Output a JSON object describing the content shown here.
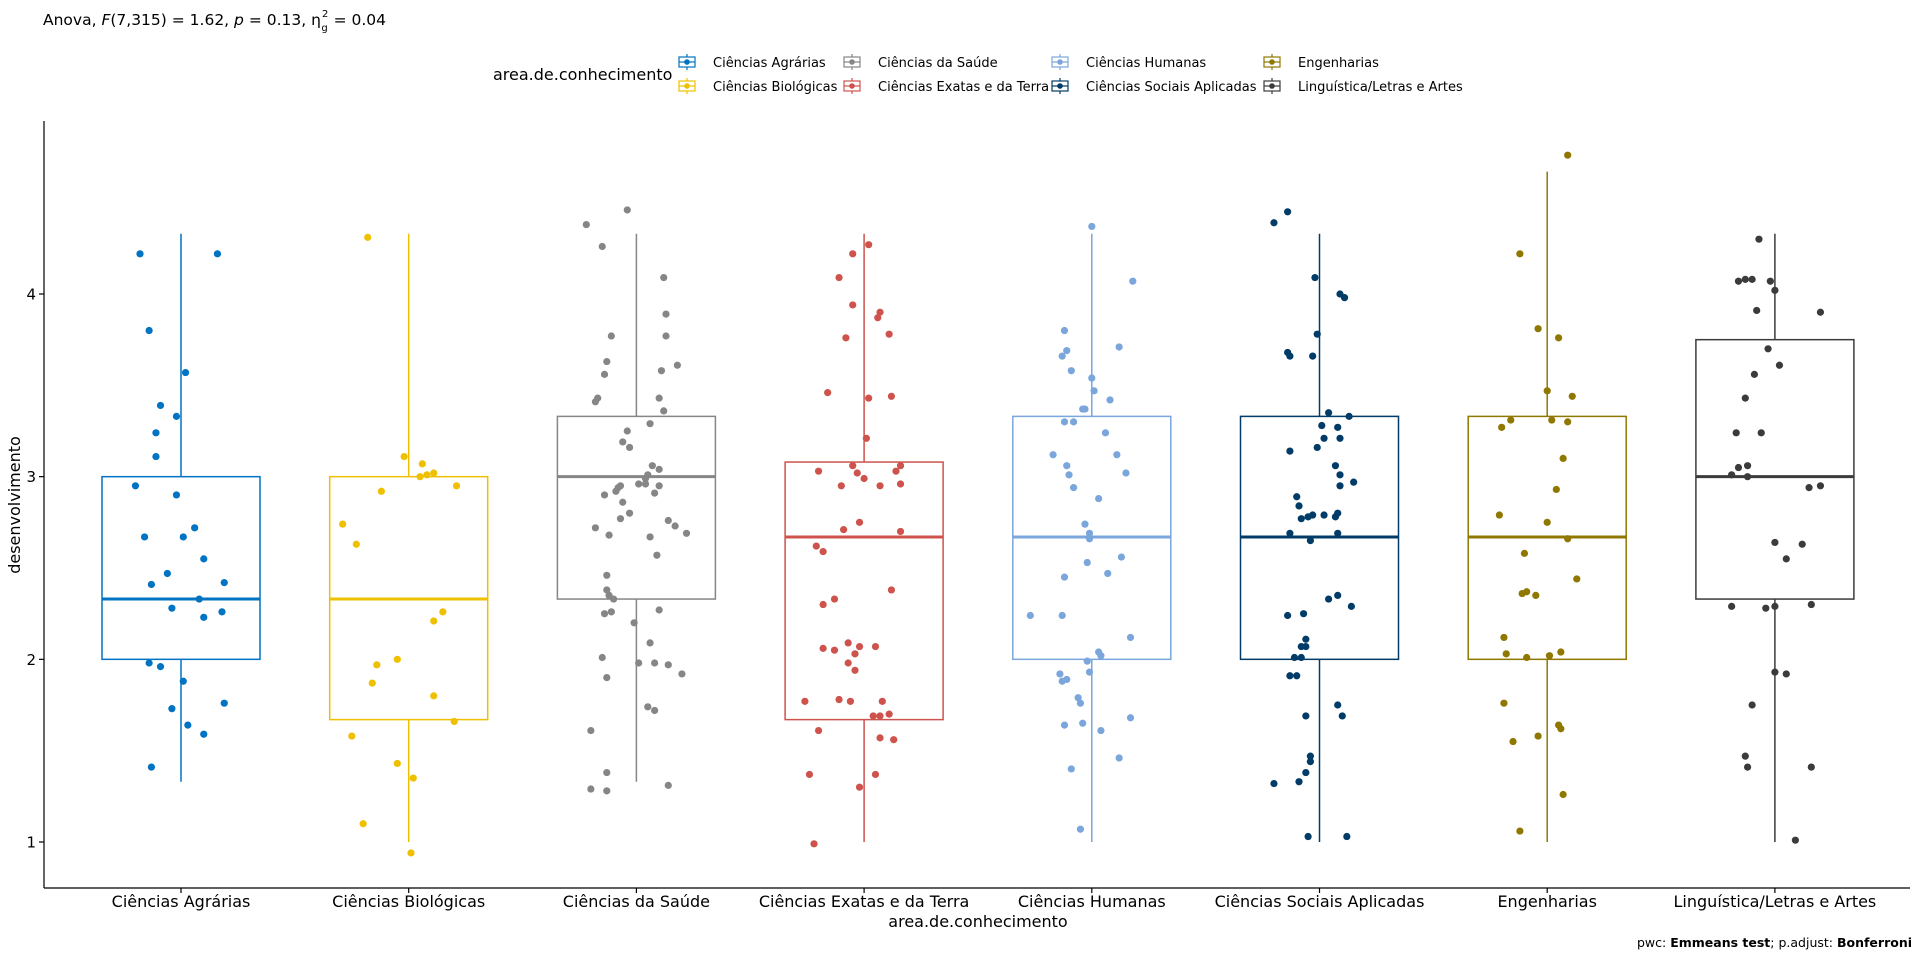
{
  "chart_data": {
    "type": "box",
    "subtitle": {
      "prefix": "Anova, ",
      "F_symbol": "F",
      "F_args": "(7,315) = 1.62, ",
      "p_symbol": "p",
      "p_value": " = 0.13, ",
      "eta_symbol": "η",
      "eta_sup": "2",
      "eta_sub": "g",
      "eta_value": " = 0.04"
    },
    "caption": {
      "pwc_label": "pwc: ",
      "pwc_method": "Emmeans test",
      "adjust_label": "; p.adjust: ",
      "adjust_method": "Bonferroni"
    },
    "xlabel": "area.de.conhecimento",
    "ylabel": "desenvolvimento",
    "legend_title": "area.de.conhecimento",
    "legend_position": "top",
    "grid": false,
    "ylim": [
      0.75,
      4.95
    ],
    "yticks": [
      1,
      2,
      3,
      4
    ],
    "categories": [
      "Ciências Agrárias",
      "Ciências Biológicas",
      "Ciências da Saúde",
      "Ciências Exatas e da Terra",
      "Ciências Humanas",
      "Ciências Sociais Aplicadas",
      "Engenharias",
      "Linguística/Letras e Artes"
    ],
    "colors": [
      "#0073C2",
      "#EFC000",
      "#868686",
      "#CD534C",
      "#7AA6DC",
      "#003C67",
      "#8F7700",
      "#3B3B3B"
    ],
    "boxes": [
      {
        "whisker_low": 1.33,
        "q1": 2.0,
        "median": 2.33,
        "q3": 3.0,
        "whisker_high": 4.33
      },
      {
        "whisker_low": 1.0,
        "q1": 1.67,
        "median": 2.33,
        "q3": 3.0,
        "whisker_high": 4.33
      },
      {
        "whisker_low": 1.33,
        "q1": 2.33,
        "median": 3.0,
        "q3": 3.33,
        "whisker_high": 4.33
      },
      {
        "whisker_low": 1.0,
        "q1": 1.67,
        "median": 2.67,
        "q3": 3.08,
        "whisker_high": 4.33
      },
      {
        "whisker_low": 1.0,
        "q1": 2.0,
        "median": 2.67,
        "q3": 3.33,
        "whisker_high": 4.33
      },
      {
        "whisker_low": 1.0,
        "q1": 2.0,
        "median": 2.67,
        "q3": 3.33,
        "whisker_high": 4.33
      },
      {
        "whisker_low": 1.0,
        "q1": 2.0,
        "median": 2.67,
        "q3": 3.33,
        "whisker_high": 4.67
      },
      {
        "whisker_low": 1.0,
        "q1": 2.33,
        "median": 3.0,
        "q3": 3.75,
        "whisker_high": 4.33
      }
    ],
    "points": [
      [
        [
          -0.18,
          4.22
        ],
        [
          0.16,
          4.22
        ],
        [
          -0.14,
          3.8
        ],
        [
          0.02,
          3.57
        ],
        [
          -0.09,
          3.39
        ],
        [
          -0.02,
          3.33
        ],
        [
          -0.11,
          3.24
        ],
        [
          -0.11,
          3.11
        ],
        [
          -0.2,
          2.95
        ],
        [
          -0.02,
          2.9
        ],
        [
          0.06,
          2.72
        ],
        [
          -0.16,
          2.67
        ],
        [
          0.01,
          2.67
        ],
        [
          0.1,
          2.55
        ],
        [
          -0.06,
          2.47
        ],
        [
          0.19,
          2.42
        ],
        [
          -0.13,
          2.41
        ],
        [
          0.08,
          2.33
        ],
        [
          -0.04,
          2.28
        ],
        [
          0.18,
          2.26
        ],
        [
          0.1,
          2.23
        ],
        [
          -0.14,
          1.98
        ],
        [
          -0.09,
          1.96
        ],
        [
          0.01,
          1.88
        ],
        [
          0.19,
          1.76
        ],
        [
          -0.04,
          1.73
        ],
        [
          0.03,
          1.64
        ],
        [
          0.1,
          1.59
        ],
        [
          -0.13,
          1.41
        ]
      ],
      [
        [
          -0.18,
          4.31
        ],
        [
          -0.02,
          3.11
        ],
        [
          0.06,
          3.07
        ],
        [
          -0.12,
          2.92
        ],
        [
          0.11,
          3.02
        ],
        [
          0.05,
          3.0
        ],
        [
          0.21,
          2.95
        ],
        [
          0.08,
          3.01
        ],
        [
          -0.29,
          2.74
        ],
        [
          -0.23,
          2.63
        ],
        [
          0.15,
          2.26
        ],
        [
          0.11,
          2.21
        ],
        [
          -0.05,
          2.0
        ],
        [
          -0.14,
          1.97
        ],
        [
          -0.16,
          1.87
        ],
        [
          0.11,
          1.8
        ],
        [
          0.2,
          1.66
        ],
        [
          -0.25,
          1.58
        ],
        [
          -0.05,
          1.43
        ],
        [
          0.02,
          1.35
        ],
        [
          -0.2,
          1.1
        ],
        [
          0.01,
          0.94
        ]
      ],
      [
        [
          -0.04,
          4.46
        ],
        [
          -0.22,
          4.38
        ],
        [
          -0.15,
          4.26
        ],
        [
          0.12,
          4.09
        ],
        [
          0.13,
          3.89
        ],
        [
          -0.11,
          3.77
        ],
        [
          0.11,
          3.58
        ],
        [
          0.13,
          3.77
        ],
        [
          -0.13,
          3.63
        ],
        [
          0.18,
          3.61
        ],
        [
          -0.14,
          3.56
        ],
        [
          -0.17,
          3.43
        ],
        [
          0.12,
          3.36
        ],
        [
          0.06,
          3.29
        ],
        [
          0.1,
          3.43
        ],
        [
          -0.18,
          3.41
        ],
        [
          -0.06,
          3.19
        ],
        [
          -0.04,
          3.25
        ],
        [
          -0.03,
          3.16
        ],
        [
          0.07,
          3.06
        ],
        [
          0.1,
          3.04
        ],
        [
          -0.07,
          2.95
        ],
        [
          0.05,
          3.01
        ],
        [
          -0.09,
          2.92
        ],
        [
          -0.14,
          2.9
        ],
        [
          -0.07,
          2.77
        ],
        [
          -0.06,
          2.86
        ],
        [
          -0.03,
          2.8
        ],
        [
          0.08,
          2.91
        ],
        [
          -0.08,
          2.94
        ],
        [
          0.04,
          2.96
        ],
        [
          0.01,
          2.96
        ],
        [
          0.1,
          2.95
        ],
        [
          0.04,
          2.99
        ],
        [
          0.17,
          2.73
        ],
        [
          0.14,
          2.76
        ],
        [
          0.22,
          2.69
        ],
        [
          -0.18,
          2.72
        ],
        [
          -0.12,
          2.68
        ],
        [
          0.06,
          2.67
        ],
        [
          0.09,
          2.57
        ],
        [
          -0.13,
          2.46
        ],
        [
          -0.12,
          2.35
        ],
        [
          -0.13,
          2.38
        ],
        [
          -0.1,
          2.33
        ],
        [
          -0.14,
          2.25
        ],
        [
          -0.11,
          2.26
        ],
        [
          0.1,
          2.27
        ],
        [
          -0.01,
          2.2
        ],
        [
          0.06,
          2.09
        ],
        [
          -0.15,
          2.01
        ],
        [
          0.01,
          1.98
        ],
        [
          0.08,
          1.98
        ],
        [
          0.14,
          1.97
        ],
        [
          0.2,
          1.92
        ],
        [
          -0.13,
          1.9
        ],
        [
          0.05,
          1.74
        ],
        [
          0.08,
          1.72
        ],
        [
          -0.2,
          1.61
        ],
        [
          -0.13,
          1.38
        ],
        [
          -0.2,
          1.29
        ],
        [
          -0.13,
          1.28
        ],
        [
          0.14,
          1.31
        ]
      ],
      [
        [
          -0.05,
          4.22
        ],
        [
          0.02,
          4.27
        ],
        [
          -0.11,
          4.09
        ],
        [
          -0.05,
          3.94
        ],
        [
          0.07,
          3.9
        ],
        [
          0.06,
          3.87
        ],
        [
          -0.08,
          3.76
        ],
        [
          0.11,
          3.78
        ],
        [
          -0.16,
          3.46
        ],
        [
          0.02,
          3.43
        ],
        [
          0.12,
          3.44
        ],
        [
          0.01,
          3.21
        ],
        [
          -0.2,
          3.03
        ],
        [
          -0.05,
          3.06
        ],
        [
          0.16,
          3.06
        ],
        [
          0.14,
          3.03
        ],
        [
          -0.03,
          3.02
        ],
        [
          0.16,
          2.96
        ],
        [
          0.07,
          2.95
        ],
        [
          0.0,
          2.99
        ],
        [
          -0.1,
          2.95
        ],
        [
          -0.21,
          2.62
        ],
        [
          -0.18,
          2.59
        ],
        [
          -0.09,
          2.71
        ],
        [
          -0.02,
          2.75
        ],
        [
          0.16,
          2.7
        ],
        [
          0.12,
          2.38
        ],
        [
          -0.13,
          2.33
        ],
        [
          -0.18,
          2.3
        ],
        [
          -0.07,
          2.09
        ],
        [
          -0.02,
          2.07
        ],
        [
          0.05,
          2.07
        ],
        [
          -0.13,
          2.05
        ],
        [
          -0.04,
          2.03
        ],
        [
          -0.18,
          2.06
        ],
        [
          -0.04,
          1.94
        ],
        [
          -0.07,
          1.98
        ],
        [
          -0.11,
          1.78
        ],
        [
          -0.06,
          1.77
        ],
        [
          0.08,
          1.77
        ],
        [
          -0.26,
          1.77
        ],
        [
          0.04,
          1.69
        ],
        [
          0.11,
          1.7
        ],
        [
          0.07,
          1.69
        ],
        [
          -0.2,
          1.61
        ],
        [
          0.07,
          1.57
        ],
        [
          0.13,
          1.56
        ],
        [
          -0.24,
          1.37
        ],
        [
          0.05,
          1.37
        ],
        [
          -0.02,
          1.3
        ],
        [
          -0.22,
          0.99
        ]
      ],
      [
        [
          0.0,
          4.37
        ],
        [
          0.18,
          4.07
        ],
        [
          -0.12,
          3.8
        ],
        [
          -0.11,
          3.69
        ],
        [
          -0.13,
          3.66
        ],
        [
          0.12,
          3.71
        ],
        [
          -0.09,
          3.58
        ],
        [
          0.0,
          3.54
        ],
        [
          0.08,
          3.42
        ],
        [
          -0.04,
          3.37
        ],
        [
          0.01,
          3.47
        ],
        [
          -0.03,
          3.37
        ],
        [
          -0.08,
          3.3
        ],
        [
          -0.12,
          3.3
        ],
        [
          -0.17,
          3.12
        ],
        [
          0.11,
          3.12
        ],
        [
          0.06,
          3.24
        ],
        [
          -0.11,
          3.06
        ],
        [
          -0.1,
          3.01
        ],
        [
          -0.08,
          2.94
        ],
        [
          0.15,
          3.02
        ],
        [
          0.03,
          2.88
        ],
        [
          -0.03,
          2.74
        ],
        [
          -0.01,
          2.66
        ],
        [
          -0.01,
          2.69
        ],
        [
          0.13,
          2.56
        ],
        [
          -0.02,
          2.53
        ],
        [
          0.07,
          2.47
        ],
        [
          -0.12,
          2.45
        ],
        [
          -0.27,
          2.24
        ],
        [
          -0.13,
          2.24
        ],
        [
          0.17,
          2.12
        ],
        [
          0.03,
          2.04
        ],
        [
          0.04,
          2.02
        ],
        [
          -0.02,
          1.99
        ],
        [
          -0.14,
          1.92
        ],
        [
          -0.01,
          1.93
        ],
        [
          -0.13,
          1.88
        ],
        [
          -0.11,
          1.89
        ],
        [
          -0.06,
          1.79
        ],
        [
          -0.05,
          1.76
        ],
        [
          -0.04,
          1.65
        ],
        [
          0.17,
          1.68
        ],
        [
          -0.12,
          1.64
        ],
        [
          0.04,
          1.61
        ],
        [
          0.12,
          1.46
        ],
        [
          -0.09,
          1.4
        ],
        [
          -0.05,
          1.07
        ]
      ],
      [
        [
          -0.2,
          4.39
        ],
        [
          -0.14,
          4.45
        ],
        [
          -0.02,
          4.09
        ],
        [
          0.09,
          4.0
        ],
        [
          0.11,
          3.98
        ],
        [
          -0.01,
          3.78
        ],
        [
          -0.14,
          3.68
        ],
        [
          -0.13,
          3.66
        ],
        [
          -0.03,
          3.66
        ],
        [
          0.04,
          3.35
        ],
        [
          0.13,
          3.33
        ],
        [
          0.01,
          3.28
        ],
        [
          0.08,
          3.27
        ],
        [
          0.09,
          3.21
        ],
        [
          0.02,
          3.21
        ],
        [
          -0.13,
          3.14
        ],
        [
          -0.01,
          3.16
        ],
        [
          0.07,
          3.06
        ],
        [
          0.09,
          3.01
        ],
        [
          0.15,
          2.97
        ],
        [
          -0.1,
          2.89
        ],
        [
          -0.09,
          2.84
        ],
        [
          0.09,
          2.95
        ],
        [
          0.02,
          2.79
        ],
        [
          0.07,
          2.78
        ],
        [
          -0.05,
          2.78
        ],
        [
          -0.03,
          2.79
        ],
        [
          0.08,
          2.8
        ],
        [
          -0.08,
          2.77
        ],
        [
          -0.13,
          2.69
        ],
        [
          0.08,
          2.69
        ],
        [
          -0.04,
          2.65
        ],
        [
          0.04,
          2.33
        ],
        [
          0.08,
          2.35
        ],
        [
          0.14,
          2.29
        ],
        [
          -0.14,
          2.24
        ],
        [
          -0.07,
          2.25
        ],
        [
          -0.06,
          2.11
        ],
        [
          -0.08,
          2.07
        ],
        [
          -0.06,
          2.07
        ],
        [
          -0.11,
          2.01
        ],
        [
          -0.08,
          2.01
        ],
        [
          -0.1,
          1.91
        ],
        [
          -0.13,
          1.91
        ],
        [
          0.08,
          1.75
        ],
        [
          0.1,
          1.69
        ],
        [
          -0.06,
          1.69
        ],
        [
          -0.04,
          1.47
        ],
        [
          -0.04,
          1.44
        ],
        [
          -0.06,
          1.38
        ],
        [
          -0.09,
          1.33
        ],
        [
          -0.2,
          1.32
        ],
        [
          -0.05,
          1.03
        ],
        [
          0.12,
          1.03
        ]
      ],
      [
        [
          -0.12,
          4.22
        ],
        [
          0.09,
          4.76
        ],
        [
          -0.04,
          3.81
        ],
        [
          0.05,
          3.76
        ],
        [
          0.11,
          3.44
        ],
        [
          -0.16,
          3.31
        ],
        [
          0.02,
          3.31
        ],
        [
          -0.2,
          3.27
        ],
        [
          0.09,
          3.3
        ],
        [
          0.07,
          3.1
        ],
        [
          0.0,
          3.47
        ],
        [
          0.04,
          2.93
        ],
        [
          -0.21,
          2.79
        ],
        [
          0.0,
          2.75
        ],
        [
          0.09,
          2.66
        ],
        [
          -0.1,
          2.58
        ],
        [
          0.13,
          2.44
        ],
        [
          -0.05,
          2.35
        ],
        [
          -0.09,
          2.37
        ],
        [
          -0.11,
          2.36
        ],
        [
          -0.19,
          2.12
        ],
        [
          -0.09,
          2.01
        ],
        [
          -0.18,
          2.03
        ],
        [
          0.01,
          2.02
        ],
        [
          0.06,
          2.04
        ],
        [
          -0.19,
          1.76
        ],
        [
          0.05,
          1.64
        ],
        [
          -0.04,
          1.58
        ],
        [
          0.06,
          1.62
        ],
        [
          -0.15,
          1.55
        ],
        [
          0.07,
          1.26
        ],
        [
          -0.12,
          1.06
        ]
      ],
      [
        [
          -0.07,
          4.3
        ],
        [
          -0.1,
          4.08
        ],
        [
          -0.13,
          4.08
        ],
        [
          -0.02,
          4.07
        ],
        [
          -0.16,
          4.07
        ],
        [
          0.0,
          4.02
        ],
        [
          -0.08,
          3.91
        ],
        [
          0.2,
          3.9
        ],
        [
          -0.03,
          3.7
        ],
        [
          0.02,
          3.61
        ],
        [
          -0.09,
          3.56
        ],
        [
          -0.13,
          3.43
        ],
        [
          -0.06,
          3.24
        ],
        [
          -0.17,
          3.24
        ],
        [
          -0.12,
          3.06
        ],
        [
          -0.16,
          3.05
        ],
        [
          -0.19,
          3.01
        ],
        [
          -0.12,
          3.0
        ],
        [
          0.2,
          2.95
        ],
        [
          0.15,
          2.94
        ],
        [
          0.0,
          2.64
        ],
        [
          0.12,
          2.63
        ],
        [
          0.05,
          2.55
        ],
        [
          -0.19,
          2.29
        ],
        [
          0.0,
          2.29
        ],
        [
          -0.04,
          2.28
        ],
        [
          0.16,
          2.3
        ],
        [
          0.0,
          1.93
        ],
        [
          0.05,
          1.92
        ],
        [
          -0.1,
          1.75
        ],
        [
          -0.13,
          1.47
        ],
        [
          -0.12,
          1.41
        ],
        [
          0.16,
          1.41
        ],
        [
          0.09,
          1.01
        ]
      ]
    ]
  }
}
